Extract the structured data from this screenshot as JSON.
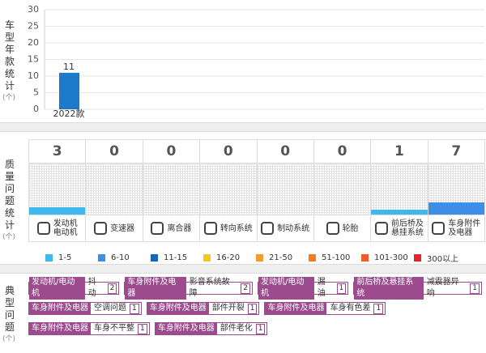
{
  "year_chart": {
    "chart_data": {
      "type": "bar",
      "axis_label": "车型年款统计",
      "axis_unit": "(个)",
      "categories": [
        "2022款"
      ],
      "values": [
        11
      ],
      "color": "#1b7bc9",
      "ylim": [
        0,
        30
      ],
      "yticks": [
        0,
        5,
        10,
        15,
        20,
        25,
        30
      ],
      "grid": true
    }
  },
  "quality": {
    "label": "质量问题统计",
    "unit": "(个)",
    "columns": [
      {
        "name": "发动机\n电动机",
        "count": 3,
        "color": "#3fb8f0"
      },
      {
        "name": "变速器",
        "count": 0,
        "color": "#3fb8f0"
      },
      {
        "name": "离合器",
        "count": 0,
        "color": "#3fb8f0"
      },
      {
        "name": "转向系统",
        "count": 0,
        "color": "#3fb8f0"
      },
      {
        "name": "制动系统",
        "count": 0,
        "color": "#3fb8f0"
      },
      {
        "name": "轮胎",
        "count": 0,
        "color": "#3fb8f0"
      },
      {
        "name": "前后桥及\n悬挂系统",
        "count": 1,
        "color": "#3fb8f0"
      },
      {
        "name": "车身附件\n及电器",
        "count": 7,
        "color": "#3d8ee6"
      }
    ],
    "legend": [
      {
        "label": "1-5",
        "color": "#3fb8f0"
      },
      {
        "label": "6-10",
        "color": "#3d8ee6"
      },
      {
        "label": "11-15",
        "color": "#1565b8"
      },
      {
        "label": "16-20",
        "color": "#f8c61c"
      },
      {
        "label": "21-50",
        "color": "#f59b2e"
      },
      {
        "label": "51-100",
        "color": "#f47b20"
      },
      {
        "label": "101-300",
        "color": "#f05a23"
      },
      {
        "label": "300以上",
        "color": "#e8232a"
      }
    ]
  },
  "typical": {
    "label": "典型问题",
    "unit": "(个)",
    "rows": [
      [
        {
          "category": "发动机/电动机",
          "problem": "抖动",
          "count": 2
        },
        {
          "category": "车身附件及电器",
          "problem": "影音系统故障",
          "count": 2
        },
        {
          "category": "发动机/电动机",
          "problem": "漏油",
          "count": 1
        },
        {
          "category": "前后桥及悬挂系统",
          "problem": "减震器异响",
          "count": 1
        }
      ],
      [
        {
          "category": "车身附件及电器",
          "problem": "空调问题",
          "count": 1
        },
        {
          "category": "车身附件及电器",
          "problem": "部件开裂",
          "count": 1
        },
        {
          "category": "车身附件及电器",
          "problem": "车身有色差",
          "count": 1
        }
      ],
      [
        {
          "category": "车身附件及电器",
          "problem": "车身不平整",
          "count": 1
        },
        {
          "category": "车身附件及电器",
          "problem": "部件老化",
          "count": 1
        }
      ]
    ]
  }
}
